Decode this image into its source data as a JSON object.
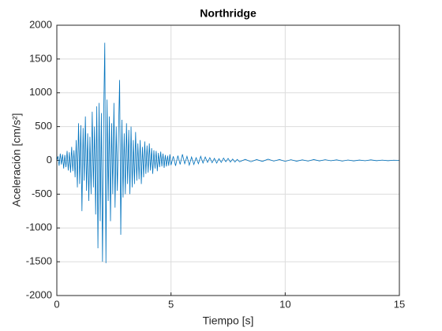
{
  "chart_data": {
    "type": "line",
    "title": "Northridge",
    "xlabel": "Tiempo [s]",
    "ylabel": "Aceleración [cm/s²]",
    "color": "#0072bd",
    "grid": true,
    "xlim": [
      0,
      15
    ],
    "ylim": [
      -2000,
      2000
    ],
    "xticks": [
      0,
      5,
      10,
      15
    ],
    "yticks": [
      -2000,
      -1500,
      -1000,
      -500,
      0,
      500,
      1000,
      1500,
      2000
    ],
    "x": [
      0,
      0.05,
      0.1,
      0.15,
      0.2,
      0.25,
      0.3,
      0.35,
      0.4,
      0.45,
      0.5,
      0.55,
      0.6,
      0.65,
      0.7,
      0.75,
      0.8,
      0.85,
      0.9,
      0.95,
      1,
      1.05,
      1.1,
      1.15,
      1.2,
      1.25,
      1.3,
      1.35,
      1.4,
      1.45,
      1.5,
      1.55,
      1.6,
      1.65,
      1.7,
      1.75,
      1.8,
      1.85,
      1.9,
      1.95,
      2,
      2.05,
      2.1,
      2.15,
      2.2,
      2.25,
      2.3,
      2.35,
      2.4,
      2.45,
      2.5,
      2.55,
      2.6,
      2.65,
      2.7,
      2.75,
      2.8,
      2.85,
      2.9,
      2.95,
      3,
      3.05,
      3.1,
      3.15,
      3.2,
      3.25,
      3.3,
      3.35,
      3.4,
      3.45,
      3.5,
      3.55,
      3.6,
      3.65,
      3.7,
      3.75,
      3.8,
      3.85,
      3.9,
      3.95,
      4,
      4.05,
      4.1,
      4.15,
      4.2,
      4.25,
      4.3,
      4.35,
      4.4,
      4.45,
      4.5,
      4.55,
      4.6,
      4.65,
      4.7,
      4.75,
      4.8,
      4.85,
      4.9,
      4.95,
      5,
      5.1,
      5.2,
      5.3,
      5.4,
      5.5,
      5.6,
      5.7,
      5.8,
      5.9,
      6,
      6.1,
      6.2,
      6.3,
      6.4,
      6.5,
      6.6,
      6.7,
      6.8,
      6.9,
      7,
      7.1,
      7.2,
      7.3,
      7.4,
      7.5,
      7.6,
      7.7,
      7.8,
      7.9,
      8,
      8.25,
      8.5,
      8.75,
      9,
      9.25,
      9.5,
      9.75,
      10,
      10.25,
      10.5,
      10.75,
      11,
      11.25,
      11.5,
      11.75,
      12,
      12.25,
      12.5,
      12.75,
      13,
      13.25,
      13.5,
      13.75,
      14,
      14.25,
      14.5,
      14.75,
      15
    ],
    "values": [
      0,
      60,
      -80,
      100,
      -60,
      90,
      -120,
      80,
      -100,
      140,
      -150,
      120,
      -180,
      200,
      -160,
      150,
      -250,
      300,
      -400,
      550,
      -350,
      520,
      -750,
      480,
      -300,
      650,
      -450,
      400,
      -600,
      350,
      -500,
      720,
      -400,
      500,
      -800,
      800,
      -1300,
      850,
      -900,
      700,
      -1500,
      600,
      1740,
      -1520,
      900,
      -600,
      650,
      -900,
      550,
      -500,
      850,
      -700,
      500,
      -450,
      400,
      1190,
      -1100,
      600,
      -550,
      400,
      -500,
      550,
      -350,
      450,
      -500,
      500,
      -400,
      300,
      -350,
      420,
      -300,
      250,
      -280,
      300,
      -350,
      200,
      -250,
      280,
      -200,
      220,
      -180,
      250,
      -150,
      180,
      -200,
      150,
      -120,
      140,
      -160,
      110,
      -100,
      130,
      -90,
      100,
      -110,
      80,
      -90,
      70,
      -80,
      90,
      -70,
      60,
      -80,
      70,
      -60,
      90,
      -50,
      60,
      -70,
      50,
      -60,
      40,
      -50,
      60,
      -40,
      50,
      -30,
      40,
      -35,
      30,
      -40,
      25,
      -30,
      35,
      -20,
      30,
      -25,
      20,
      -25,
      15,
      -20,
      15,
      -20,
      12,
      -15,
      18,
      -10,
      12,
      -14,
      10,
      -12,
      8,
      -10,
      12,
      -8,
      10,
      -6,
      8,
      -10,
      6,
      -8,
      5,
      -6,
      8,
      -5,
      4,
      -5,
      3,
      0
    ]
  }
}
